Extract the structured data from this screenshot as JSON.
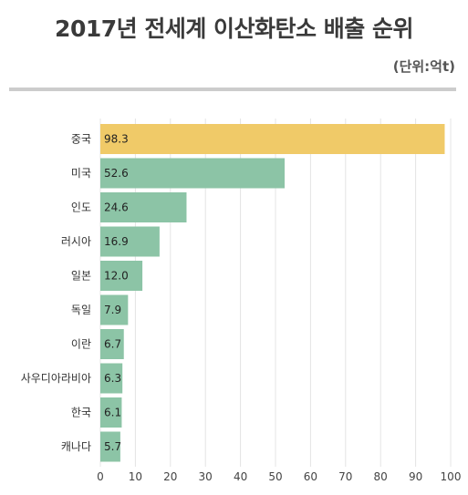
{
  "chart_data": {
    "type": "bar",
    "orientation": "horizontal",
    "title": "2017년 전세계 이산화탄소 배출 순위",
    "subtitle": "(단위:억t)",
    "categories": [
      "중국",
      "미국",
      "인도",
      "러시아",
      "일본",
      "독일",
      "이란",
      "사우디아라비아",
      "한국",
      "캐나다"
    ],
    "values": [
      98.3,
      52.6,
      24.6,
      16.9,
      12.0,
      7.9,
      6.7,
      6.3,
      6.1,
      5.7
    ],
    "value_labels": [
      "98.3",
      "52.6",
      "24.6",
      "16.9",
      "12.0",
      "7.9",
      "6.7",
      "6.3",
      "6.1",
      "5.7"
    ],
    "xlim": [
      0,
      100
    ],
    "xticks": [
      "0",
      "10",
      "20",
      "30",
      "40",
      "50",
      "60",
      "70",
      "80",
      "90",
      "100"
    ],
    "grid": true,
    "colors": {
      "highlight": "#f0ca68",
      "bar": "#8cc4a6"
    }
  }
}
